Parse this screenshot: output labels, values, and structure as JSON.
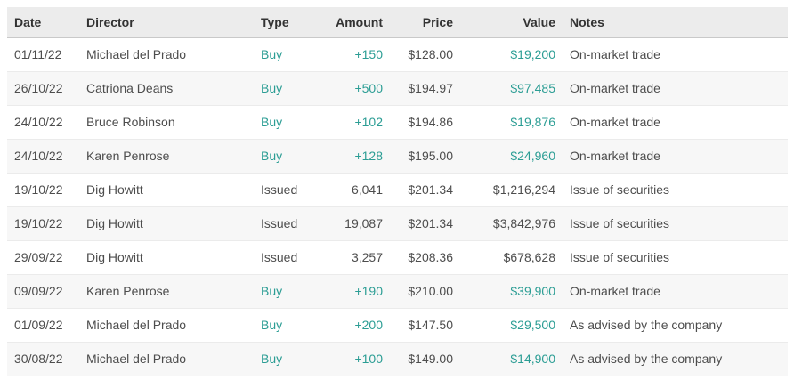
{
  "table": {
    "name": "director-transactions",
    "columns": [
      {
        "key": "date",
        "label": "Date",
        "align": "left"
      },
      {
        "key": "director",
        "label": "Director",
        "align": "left"
      },
      {
        "key": "type",
        "label": "Type",
        "align": "left"
      },
      {
        "key": "amount",
        "label": "Amount",
        "align": "right"
      },
      {
        "key": "price",
        "label": "Price",
        "align": "right"
      },
      {
        "key": "value",
        "label": "Value",
        "align": "right"
      },
      {
        "key": "notes",
        "label": "Notes",
        "align": "left"
      }
    ],
    "rows": [
      {
        "date": "01/11/22",
        "director": "Michael del Prado",
        "type": "Buy",
        "amount": "+150",
        "price": "$128.00",
        "value": "$19,200",
        "notes": "On-market trade",
        "trade_kind": "buy"
      },
      {
        "date": "26/10/22",
        "director": "Catriona Deans",
        "type": "Buy",
        "amount": "+500",
        "price": "$194.97",
        "value": "$97,485",
        "notes": "On-market trade",
        "trade_kind": "buy"
      },
      {
        "date": "24/10/22",
        "director": "Bruce Robinson",
        "type": "Buy",
        "amount": "+102",
        "price": "$194.86",
        "value": "$19,876",
        "notes": "On-market trade",
        "trade_kind": "buy"
      },
      {
        "date": "24/10/22",
        "director": "Karen Penrose",
        "type": "Buy",
        "amount": "+128",
        "price": "$195.00",
        "value": "$24,960",
        "notes": "On-market trade",
        "trade_kind": "buy"
      },
      {
        "date": "19/10/22",
        "director": "Dig Howitt",
        "type": "Issued",
        "amount": "6,041",
        "price": "$201.34",
        "value": "$1,216,294",
        "notes": "Issue of securities",
        "trade_kind": "issued"
      },
      {
        "date": "19/10/22",
        "director": "Dig Howitt",
        "type": "Issued",
        "amount": "19,087",
        "price": "$201.34",
        "value": "$3,842,976",
        "notes": "Issue of securities",
        "trade_kind": "issued"
      },
      {
        "date": "29/09/22",
        "director": "Dig Howitt",
        "type": "Issued",
        "amount": "3,257",
        "price": "$208.36",
        "value": "$678,628",
        "notes": "Issue of securities",
        "trade_kind": "issued"
      },
      {
        "date": "09/09/22",
        "director": "Karen Penrose",
        "type": "Buy",
        "amount": "+190",
        "price": "$210.00",
        "value": "$39,900",
        "notes": "On-market trade",
        "trade_kind": "buy"
      },
      {
        "date": "01/09/22",
        "director": "Michael del Prado",
        "type": "Buy",
        "amount": "+200",
        "price": "$147.50",
        "value": "$29,500",
        "notes": "As advised by the company",
        "trade_kind": "buy"
      },
      {
        "date": "30/08/22",
        "director": "Michael del Prado",
        "type": "Buy",
        "amount": "+100",
        "price": "$149.00",
        "value": "$14,900",
        "notes": "As advised by the company",
        "trade_kind": "buy"
      }
    ],
    "buy_highlight_columns": [
      "type",
      "amount",
      "value"
    ]
  },
  "colors": {
    "accent_teal": "#2b9d94",
    "body_text": "#4d4d4d",
    "header_text": "#333333",
    "header_bg": "#ececec",
    "stripe_bg": "#f7f7f7",
    "header_border": "#c9c9c9",
    "row_border": "#ebebeb",
    "page_bg": "#ffffff"
  }
}
